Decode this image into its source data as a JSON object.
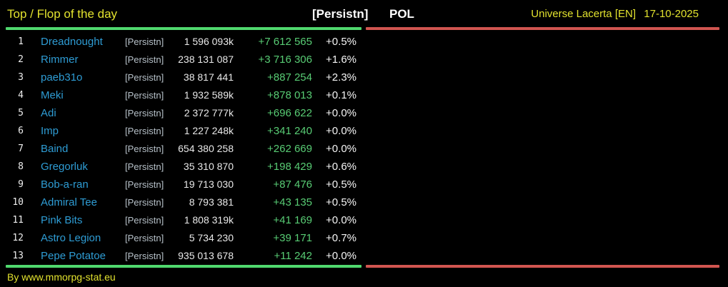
{
  "colors": {
    "background": "#000000",
    "accent_yellow": "#e2e22e",
    "header_white": "#ffffff",
    "player_name_blue": "#2e9cd4",
    "alliance_tag_gray": "#b6c0c8",
    "value_white": "#e9e9e9",
    "delta_green": "#58cc74",
    "divider_green": "#50d86e",
    "divider_red": "#d05550"
  },
  "header": {
    "title": "Top / Flop of the day",
    "alliance_tag": "[Persistn]",
    "country": "POL",
    "universe": "Universe Lacerta [EN]",
    "date": "17-10-2025"
  },
  "table": {
    "rows": [
      {
        "rank": "1",
        "name": "Dreadnought",
        "tag": "[Persistn]",
        "value": "1 596 093k",
        "delta": "+7 612 565",
        "pct": "+0.5%"
      },
      {
        "rank": "2",
        "name": "Rimmer",
        "tag": "[Persistn]",
        "value": "238 131 087",
        "delta": "+3 716 306",
        "pct": "+1.6%"
      },
      {
        "rank": "3",
        "name": "paeb31o",
        "tag": "[Persistn]",
        "value": "38 817 441",
        "delta": "+887 254",
        "pct": "+2.3%"
      },
      {
        "rank": "4",
        "name": "Meki",
        "tag": "[Persistn]",
        "value": "1 932 589k",
        "delta": "+878 013",
        "pct": "+0.1%"
      },
      {
        "rank": "5",
        "name": "Adi",
        "tag": "[Persistn]",
        "value": "2 372 777k",
        "delta": "+696 622",
        "pct": "+0.0%"
      },
      {
        "rank": "6",
        "name": "Imp",
        "tag": "[Persistn]",
        "value": "1 227 248k",
        "delta": "+341 240",
        "pct": "+0.0%"
      },
      {
        "rank": "7",
        "name": "Baind",
        "tag": "[Persistn]",
        "value": "654 380 258",
        "delta": "+262 669",
        "pct": "+0.0%"
      },
      {
        "rank": "8",
        "name": "Gregorluk",
        "tag": "[Persistn]",
        "value": "35 310 870",
        "delta": "+198 429",
        "pct": "+0.6%"
      },
      {
        "rank": "9",
        "name": "Bob-a-ran",
        "tag": "[Persistn]",
        "value": "19 713 030",
        "delta": "+87 476",
        "pct": "+0.5%"
      },
      {
        "rank": "10",
        "name": "Admiral Tee",
        "tag": "[Persistn]",
        "value": "8 793 381",
        "delta": "+43 135",
        "pct": "+0.5%"
      },
      {
        "rank": "11",
        "name": "Pink Bits",
        "tag": "[Persistn]",
        "value": "1 808 319k",
        "delta": "+41 169",
        "pct": "+0.0%"
      },
      {
        "rank": "12",
        "name": "Astro Legion",
        "tag": "[Persistn]",
        "value": "5 734 230",
        "delta": "+39 171",
        "pct": "+0.7%"
      },
      {
        "rank": "13",
        "name": "Pepe Potatoe",
        "tag": "[Persistn]",
        "value": "935 013 678",
        "delta": "+11 242",
        "pct": "+0.0%"
      }
    ]
  },
  "footer": {
    "credit": "By www.mmorpg-stat.eu"
  }
}
